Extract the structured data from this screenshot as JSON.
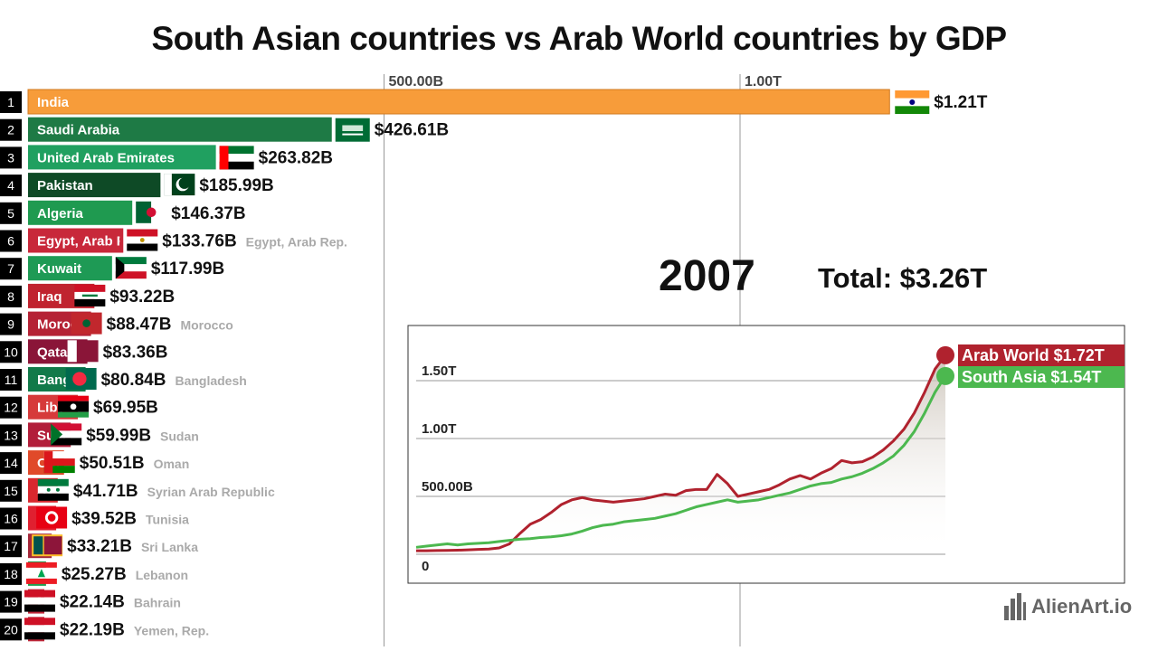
{
  "title": "South Asian countries vs Arab World countries by GDP",
  "year": "2007",
  "total_label": "Total: $3.26T",
  "watermark": "AlienArt.io",
  "chart_data": [
    {
      "type": "bar",
      "xaxis_ticks": [
        {
          "value": 500,
          "label": "500.00B"
        },
        {
          "value": 1000,
          "label": "1.00T"
        }
      ],
      "unit": "billions USD",
      "bars": [
        {
          "rank": "1",
          "name": "India",
          "value": 1210,
          "value_label": "$1.21T",
          "color": "#F79C3A",
          "name_color": "#111111",
          "flag": "india",
          "ghost": ""
        },
        {
          "rank": "2",
          "name": "Saudi Arabia",
          "value": 426.61,
          "value_label": "$426.61B",
          "color": "#1E7A45",
          "flag": "saudi",
          "ghost": ""
        },
        {
          "rank": "3",
          "name": "United Arab Emirates",
          "value": 263.82,
          "value_label": "$263.82B",
          "color": "#20A060",
          "flag": "uae",
          "ghost": ""
        },
        {
          "rank": "4",
          "name": "Pakistan",
          "value": 185.99,
          "value_label": "$185.99B",
          "color": "#0E4A26",
          "flag": "pakistan",
          "ghost": ""
        },
        {
          "rank": "5",
          "name": "Algeria",
          "value": 146.37,
          "value_label": "$146.37B",
          "color": "#1F9A50",
          "flag": "algeria",
          "ghost": ""
        },
        {
          "rank": "6",
          "name": "Egypt, Arab Rep.",
          "value": 133.76,
          "value_label": "$133.76B",
          "color": "#C8283A",
          "flag": "egypt",
          "ghost": "Egypt, Arab Rep."
        },
        {
          "rank": "7",
          "name": "Kuwait",
          "value": 117.99,
          "value_label": "$117.99B",
          "color": "#1E9A55",
          "flag": "kuwait",
          "ghost": ""
        },
        {
          "rank": "8",
          "name": "Iraq",
          "value": 93.22,
          "value_label": "$93.22B",
          "color": "#C0232F",
          "flag": "iraq",
          "ghost": ""
        },
        {
          "rank": "9",
          "name": "Morocco",
          "value": 88.47,
          "value_label": "$88.47B",
          "color": "#B52235",
          "flag": "morocco",
          "ghost": "Morocco"
        },
        {
          "rank": "10",
          "name": "Qatar",
          "value": 83.36,
          "value_label": "$83.36B",
          "color": "#8A1538",
          "flag": "qatar",
          "ghost": ""
        },
        {
          "rank": "11",
          "name": "Bangladesh",
          "value": 80.84,
          "value_label": "$80.84B",
          "color": "#127A4A",
          "flag": "bangladesh",
          "ghost": "Bangladesh"
        },
        {
          "rank": "12",
          "name": "Libya",
          "value": 69.95,
          "value_label": "$69.95B",
          "color": "#D63A3A",
          "flag": "libya",
          "ghost": ""
        },
        {
          "rank": "13",
          "name": "Sudan",
          "value": 59.99,
          "value_label": "$59.99B",
          "color": "#B21E3A",
          "flag": "sudan",
          "ghost": "Sudan"
        },
        {
          "rank": "14",
          "name": "Oman",
          "value": 50.51,
          "value_label": "$50.51B",
          "color": "#E04A2A",
          "flag": "oman",
          "ghost": "Oman"
        },
        {
          "rank": "15",
          "name": "Syrian Arab Republic",
          "value": 41.71,
          "value_label": "$41.71B",
          "color": "#D8282E",
          "flag": "syria",
          "ghost": "Syrian Arab Republic"
        },
        {
          "rank": "16",
          "name": "Tunisia",
          "value": 39.52,
          "value_label": "$39.52B",
          "color": "#E02030",
          "flag": "tunisia",
          "ghost": "Tunisia"
        },
        {
          "rank": "17",
          "name": "Sri Lanka",
          "value": 33.21,
          "value_label": "$33.21B",
          "color": "#A5283A",
          "flag": "srilanka",
          "ghost": "Sri Lanka"
        },
        {
          "rank": "18",
          "name": "Lebanon",
          "value": 25.27,
          "value_label": "$25.27B",
          "color": "#20A050",
          "flag": "lebanon",
          "ghost": "Lebanon"
        },
        {
          "rank": "19",
          "name": "Bahrain",
          "value": 22.14,
          "value_label": "$22.14B",
          "color": "#C0283A",
          "flag": "yemen",
          "ghost": "Bahrain"
        },
        {
          "rank": "20",
          "name": "Yemen, Rep.",
          "value": 22.19,
          "value_label": "$22.19B",
          "color": "#C0283A",
          "flag": "yemen",
          "ghost": "Yemen, Rep."
        }
      ]
    },
    {
      "type": "line",
      "y_ticks": [
        {
          "value": 0,
          "label": "0"
        },
        {
          "value": 500,
          "label": "500.00B"
        },
        {
          "value": 1000,
          "label": "1.00T"
        },
        {
          "value": 1500,
          "label": "1.50T"
        }
      ],
      "ylim": [
        0,
        1800
      ],
      "series": [
        {
          "name": "Arab World",
          "end_label": "Arab World $1.72T",
          "color": "#B0222E",
          "values": [
            30,
            30,
            32,
            33,
            35,
            38,
            42,
            45,
            55,
            90,
            180,
            260,
            300,
            360,
            430,
            470,
            490,
            470,
            460,
            450,
            460,
            470,
            480,
            500,
            520,
            510,
            550,
            560,
            560,
            690,
            610,
            500,
            520,
            540,
            560,
            600,
            650,
            680,
            650,
            700,
            740,
            810,
            790,
            800,
            840,
            900,
            980,
            1080,
            1220,
            1400,
            1600,
            1720
          ]
        },
        {
          "name": "South Asia",
          "end_label": "South Asia $1.54T",
          "color": "#4CB84F",
          "values": [
            60,
            70,
            80,
            90,
            80,
            90,
            95,
            100,
            110,
            120,
            130,
            135,
            145,
            150,
            160,
            175,
            200,
            230,
            250,
            260,
            280,
            290,
            300,
            310,
            330,
            350,
            380,
            410,
            430,
            450,
            470,
            450,
            460,
            470,
            490,
            510,
            530,
            560,
            590,
            610,
            620,
            650,
            670,
            700,
            740,
            790,
            850,
            940,
            1060,
            1220,
            1400,
            1540
          ]
        }
      ]
    }
  ]
}
